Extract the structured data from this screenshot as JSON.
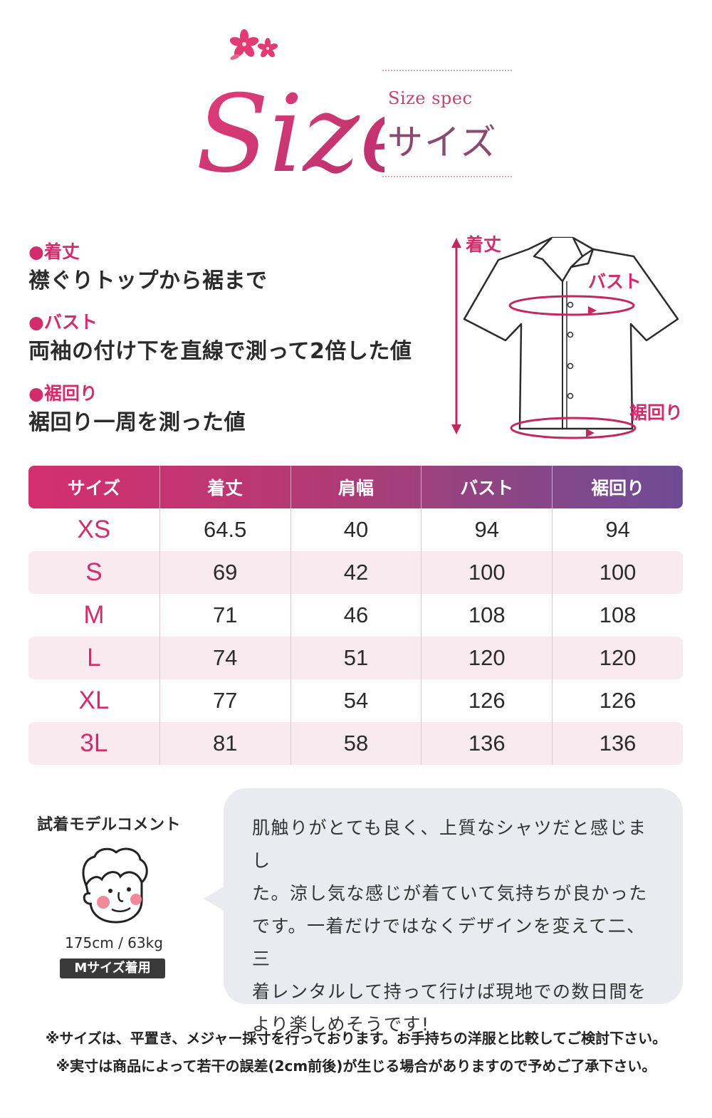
{
  "header": {
    "script_logo": "Size",
    "subtitle_en": "Size spec",
    "subtitle_jp": "サイズ",
    "accent_color": "#d32c6e"
  },
  "definitions": [
    {
      "label": "●着丈",
      "text": "襟ぐりトップから裾まで"
    },
    {
      "label": "●バスト",
      "text": "両袖の付け下を直線で測って2倍した値"
    },
    {
      "label": "●裾回り",
      "text": "裾回り一周を測った値"
    }
  ],
  "diagram": {
    "labels": {
      "length": "着丈",
      "bust": "バスト",
      "hem": "裾回り"
    },
    "icon": "shirt-diagram"
  },
  "table": {
    "headers": [
      "サイズ",
      "着丈",
      "肩幅",
      "バスト",
      "裾回り"
    ],
    "rows": [
      [
        "XS",
        "64.5",
        "40",
        "94",
        "94"
      ],
      [
        "S",
        "69",
        "42",
        "100",
        "100"
      ],
      [
        "M",
        "71",
        "46",
        "108",
        "108"
      ],
      [
        "L",
        "74",
        "51",
        "120",
        "120"
      ],
      [
        "XL",
        "77",
        "54",
        "126",
        "126"
      ],
      [
        "3L",
        "81",
        "58",
        "136",
        "136"
      ]
    ]
  },
  "model": {
    "title": "試着モデルコメント",
    "stats": "175cm / 63kg",
    "badge": "Mサイズ着用",
    "icon": "model-face-icon",
    "comment_lines": [
      "肌触りがとても良く、上質なシャツだと感じまし",
      "た。涼し気な感じが着ていて気持ちが良かった",
      "です。一着だけではなくデザインを変えて二、三",
      "着レンタルして持って行けば現地での数日間を",
      "より楽しめそうです!"
    ]
  },
  "notes": [
    "※サイズは、平置き、メジャー採寸を行っております。お手持ちの洋服と比較してご検討下さい。",
    "※実寸は商品によって若干の誤差(2cm前後)が生じる場合がありますので予めご了承下さい。"
  ]
}
